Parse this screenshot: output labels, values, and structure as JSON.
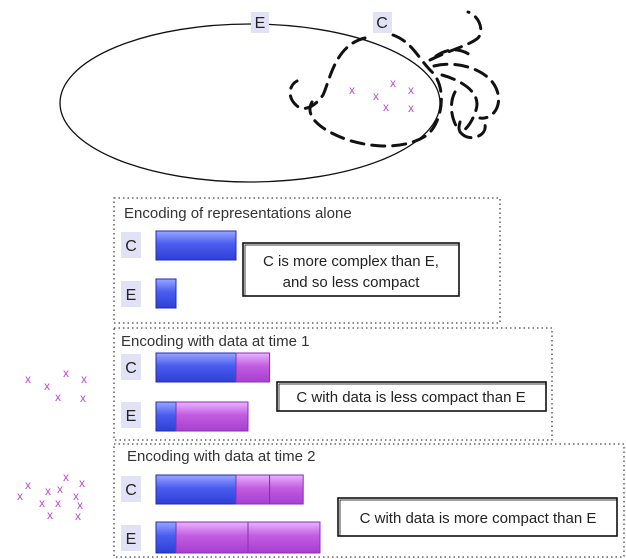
{
  "diagram": {
    "top_labels": {
      "encoder": "E",
      "complex": "C"
    },
    "x_glyph": "x",
    "panels": [
      {
        "title": "Encoding of representations alone",
        "rows": [
          {
            "label": "C",
            "rep_units": 1.0,
            "data_units": []
          },
          {
            "label": "E",
            "rep_units": 0.25,
            "data_units": []
          }
        ],
        "callout": [
          "C is more complex than E,",
          "and so less compact"
        ]
      },
      {
        "title": "Encoding with data at time 1",
        "rows": [
          {
            "label": "C",
            "rep_units": 1.0,
            "data_units": [
              0.42
            ]
          },
          {
            "label": "E",
            "rep_units": 0.25,
            "data_units": [
              0.9
            ]
          }
        ],
        "callout": [
          "C with data is less compact than E"
        ]
      },
      {
        "title": "Encoding with data at time 2",
        "rows": [
          {
            "label": "C",
            "rep_units": 1.0,
            "data_units": [
              0.42,
              0.42
            ]
          },
          {
            "label": "E",
            "rep_units": 0.25,
            "data_units": [
              0.9,
              0.9
            ]
          }
        ],
        "callout": [
          "C with data is more compact than E"
        ]
      }
    ],
    "colors": {
      "rep_bar": "#2f4fe8",
      "data_bar": "#c25ce0",
      "x_marks": "#c14ad8",
      "label_bg": "#e2e2f6"
    }
  }
}
